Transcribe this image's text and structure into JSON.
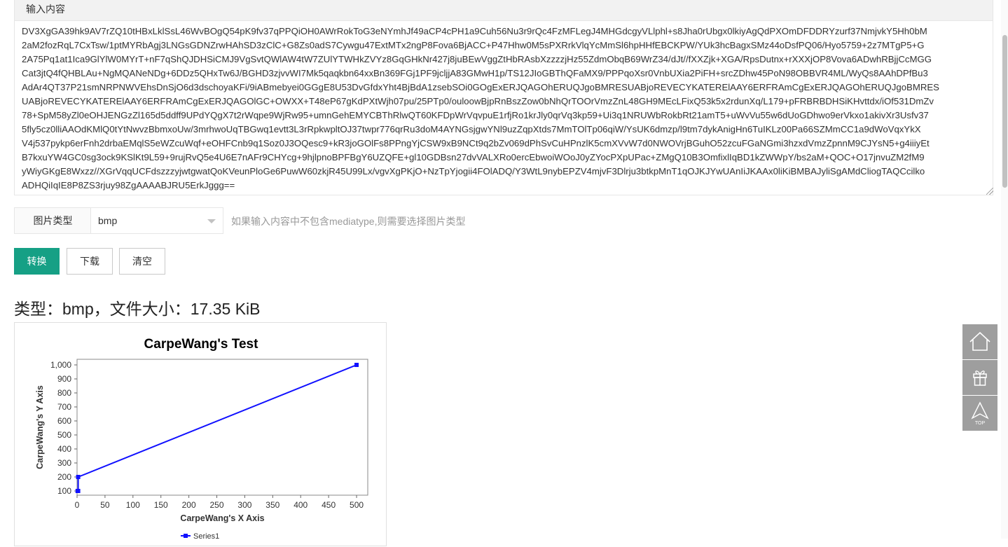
{
  "input": {
    "label": "输入内容",
    "lines": [
      "DV3XgGA39hk9AV7rZQ10tHBxLklSsL46WvBOgQ54pK9fv37qPPQiOH0AWrRokToG3eNYmhJf49aCP4cPH1a9Cuh56Nu3r9rQc4FzMFLegJ4MHGdcgyVLlphl+s8Jha0rUbgx0lkiyAgQdPXOmDFDDRYzurf37NmjvkY5Hh0bM",
      "2aM2fozRqL7CxTsw/1ptMYRbAgj3LNGsGDNZrwHAhSD3zClC+G8Zs0adS7Cywgu47ExtMTx2ngP8Fova6BjACC+P47Hhw0M5sPXRrkVlqYcMmSl6hpHHfEBCKPW/YUk3hcBagxSMz44oDsfPQ06/Hyo5759+2z7MTgP5+G",
      "2A75Pq1at1Ica9GlYlW0MYrT+nF7qShQJDHSiCMJ9VgSvtQWlAW4tW7ZUlYTWHkZVYz8GqGHkNr427j8juBEwVggZtHbRAsbXzzzzjHz55ZdmObqB69WrZ34/dJt//fXXZjk+XGA/RpsDutnx+rXXXjOP8Vova6ADwhRBjjCcMGG",
      "Cat3jtQ4fQHBLAu+NgMQANeNDg+6DDz5QHxTw6J/BGHD3zjvvWI7Mk5qaqkbn64xxBn369FGj1PF9jcljjA83GMwH1p/TS12JIoGBThQFaMX9/PPPqoXsr0VnbUXia2PiFH+srcZDhw45PoN98OBBVR4ML/WyQs8AAhDPfBu3",
      "AdAr4QT37P21smNRPNWVEhsDnSjO6d3dschoyaKFi/9iABmebyei0GGgE8U53DvGfdxYht4BjBdA1zsebSOi0GOgExERJQAGOhERUQJgoBMRESUABjoREVECYKATERElAAY6ERFRAmCgExERJQAGOhERUQJgoBMRES",
      "UABjoREVECYKATERElAAY6ERFRAmCgExERJQAGOlGC+OWXX+T48eP67gKdPXtWjh07pu/25PTp0/ouloowBjpRnBszZow0bNhQrTOOrVmzZnL48GH9MEcLFixQ53k5x2rdunXq/L179+pFRBRBDHSiKHvttdx/iOf531DmZv",
      "78+SpM58yZl0eOHJENGzZl165d5ddff9UPdYQgX7t2rWqpe9WjRw95+umnGehEMYCBThRlwQT60KFDpWrVqvpuE1rfjRo1krJly0qrVq3kp59+Ui3q1NRUWbRokbRt21amT5+uWvVu55w6dUoGDhwo9erVkxo1akivXr3Usfv37",
      "5fly5cz0lliAAOdKMlQ0tYtNwvzBbmxoUw/3mrhwoUqTBGwq1evtt3L3rRpkwpltOJ37twpr776qrRu3doM4AYNGsjgwYNl9uzZqpXtds7MmTOlTp06qiW/YsUK6dmzp/l9tm7dykAnigHn6TuIKLz00Pa66SZMmCC1a9dWoVqxYkX",
      "V4j537pykp6erFnh2drbaEMqlS5eWZcuWqf+eOHFCnb9q1Soz0J3OQesc9+kR3joGOlFs8PPngYjCSW9xB9NCt9q2bZv069dPhSvCuHPnzlK5cmXVvW7d0NWOVrjBGuhO52zcuFGaNGmi3hzxdVmzZpnnM9CJYsN5+g4iiiyEt",
      "B7kxuYW4GC0sg3ock9KSlKt9L59+9rujRvQ5e4U6E7nAFr9CHYcg+9hjlpnoBPFBgY6UZQFE+gl10GDBsn27dvVALXRo0ercEbwoiWOoJ0yZYocPXpUPac+ZMgQ10B3OmfixlIqBD1kZWWpY/bs2aM+QOC+O17jnvuZM2fM9",
      "yWiyGKgE8Wxzz//XGrVqqUCFdszzzyjwtgwatQoKVeunPloGe6PuwW60zkjR45U99Lx/vgvXgPKjO+NzTpYjogii4FOlADQ/Y3WtL9nybEPZV4mjvF3Dlrju3btkpMnT1qOJKJYwUAnIiJKAAx0liKiBMBAJyliSgAMdCliogTAQCcilko",
      "ADHQiIqIE8P8ZS3rjuy98ZgAAAABJRU5ErkJggg=="
    ]
  },
  "type_field": {
    "label": "图片类型",
    "selected": "bmp",
    "hint": "如果输入内容中不包含mediatype,则需要选择图片类型"
  },
  "buttons": {
    "convert": "转换",
    "download": "下载",
    "clear": "清空"
  },
  "result": {
    "info": "类型：bmp，文件大小：17.35 KiB"
  },
  "chart_data": {
    "type": "line",
    "title": "CarpeWang's Test",
    "xlabel": "CarpeWang's X Axis",
    "ylabel": "CarpeWang's Y Axis",
    "xlim": [
      0,
      520
    ],
    "ylim": [
      70,
      1040
    ],
    "x_ticks": [
      0,
      50,
      100,
      150,
      200,
      250,
      300,
      350,
      400,
      450,
      500
    ],
    "x_tick_labels": [
      "0",
      "50",
      "100",
      "150",
      "200",
      "250",
      "300",
      "350",
      "400",
      "450",
      "500"
    ],
    "y_ticks": [
      100,
      200,
      300,
      400,
      500,
      600,
      700,
      800,
      900,
      1000
    ],
    "y_tick_labels": [
      "100",
      "200",
      "300",
      "400",
      "500",
      "600",
      "700",
      "800",
      "900",
      "1,000"
    ],
    "grid": false,
    "legend_position": "bottom",
    "series": [
      {
        "name": "Series1",
        "color": "#1010ff",
        "x": [
          1,
          2,
          2,
          500
        ],
        "y": [
          100,
          100,
          200,
          1000
        ]
      }
    ]
  },
  "side_tools": [
    {
      "icon": "home-icon"
    },
    {
      "icon": "gift-icon"
    },
    {
      "icon": "top-icon",
      "label": "TOP"
    }
  ]
}
